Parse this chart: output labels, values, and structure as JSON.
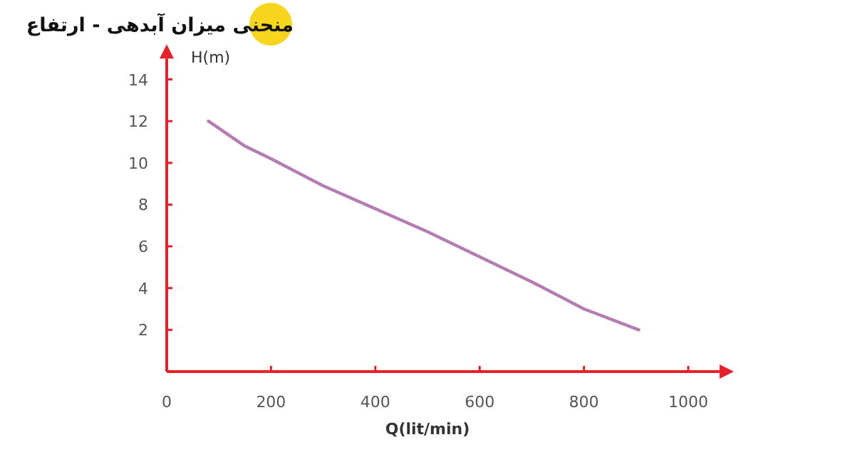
{
  "chart_data": {
    "type": "line",
    "title": "منحنی میزان آبدهی - ارتفاع",
    "xlabel": "Q(lit/min)",
    "ylabel": "H(m)",
    "x": [
      80,
      150,
      200,
      300,
      400,
      500,
      600,
      700,
      800,
      905
    ],
    "series": [
      {
        "color": "#b57bb3",
        "values": [
          12.0,
          10.8,
          10.2,
          8.9,
          7.8,
          6.7,
          5.5,
          4.3,
          3.0,
          2.0
        ]
      }
    ],
    "xlim": [
      0,
      1060
    ],
    "ylim": [
      0,
      15
    ],
    "xticks": [
      0,
      200,
      400,
      600,
      800,
      1000
    ],
    "yticks": [
      2,
      4,
      6,
      8,
      10,
      12,
      14
    ]
  }
}
